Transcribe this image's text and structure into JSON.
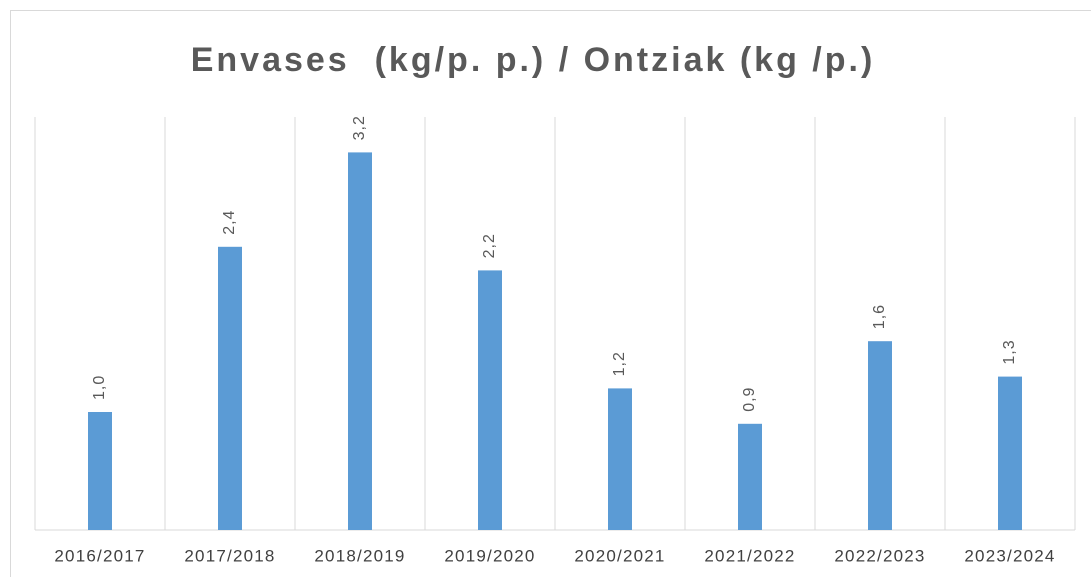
{
  "chart_data": {
    "type": "bar",
    "title": "Envases  (kg/p. p.) / Ontziak (kg /p.)",
    "categories": [
      "2016/2017",
      "2017/2018",
      "2018/2019",
      "2019/2020",
      "2020/2021",
      "2021/2022",
      "2022/2023",
      "2023/2024"
    ],
    "values": [
      1.0,
      2.4,
      3.2,
      2.2,
      1.2,
      0.9,
      1.6,
      1.3
    ],
    "value_labels": [
      "1,0",
      "2,4",
      "3,2",
      "2,2",
      "1,2",
      "0,9",
      "1,6",
      "1,3"
    ],
    "color": "#5b9bd5",
    "ylim": [
      0,
      3.5
    ]
  }
}
